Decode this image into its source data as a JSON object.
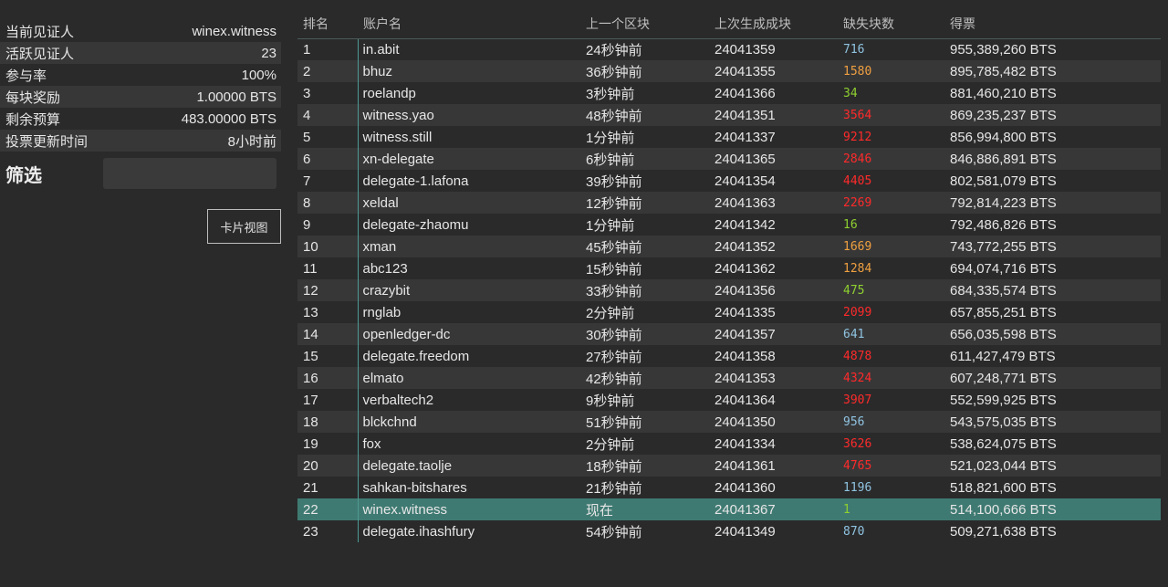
{
  "stats": [
    {
      "label": "当前见证人",
      "value": "winex.witness"
    },
    {
      "label": "活跃见证人",
      "value": "23"
    },
    {
      "label": "参与率",
      "value": "100%"
    },
    {
      "label": "每块奖励",
      "value": "1.00000 BTS"
    },
    {
      "label": "剩余预算",
      "value": "483.00000 BTS"
    },
    {
      "label": "投票更新时间",
      "value": "8小时前"
    }
  ],
  "filter": {
    "label": "筛选",
    "placeholder": ""
  },
  "card_view_button": "卡片视图",
  "table": {
    "headers": {
      "rank": "排名",
      "account": "账户名",
      "last_block": "上一个区块",
      "last_confirmed": "上次生成成块",
      "missed": "缺失块数",
      "votes": "得票"
    },
    "colors": {
      "blue": "#8fc3e0",
      "orange": "#f0a040",
      "green": "#8fd12f",
      "red": "#ff2a2a"
    },
    "rows": [
      {
        "rank": "1",
        "account": "in.abit",
        "last_block": "24秒钟前",
        "last_confirmed": "24041359",
        "missed": "716",
        "missed_color": "#8fc3e0",
        "votes": "955,389,260 BTS"
      },
      {
        "rank": "2",
        "account": "bhuz",
        "last_block": "36秒钟前",
        "last_confirmed": "24041355",
        "missed": "1580",
        "missed_color": "#f0a040",
        "votes": "895,785,482 BTS"
      },
      {
        "rank": "3",
        "account": "roelandp",
        "last_block": "3秒钟前",
        "last_confirmed": "24041366",
        "missed": "34",
        "missed_color": "#8fd12f",
        "votes": "881,460,210 BTS"
      },
      {
        "rank": "4",
        "account": "witness.yao",
        "last_block": "48秒钟前",
        "last_confirmed": "24041351",
        "missed": "3564",
        "missed_color": "#ff2a2a",
        "votes": "869,235,237 BTS"
      },
      {
        "rank": "5",
        "account": "witness.still",
        "last_block": "1分钟前",
        "last_confirmed": "24041337",
        "missed": "9212",
        "missed_color": "#ff2a2a",
        "votes": "856,994,800 BTS"
      },
      {
        "rank": "6",
        "account": "xn-delegate",
        "last_block": "6秒钟前",
        "last_confirmed": "24041365",
        "missed": "2846",
        "missed_color": "#ff2a2a",
        "votes": "846,886,891 BTS"
      },
      {
        "rank": "7",
        "account": "delegate-1.lafona",
        "last_block": "39秒钟前",
        "last_confirmed": "24041354",
        "missed": "4405",
        "missed_color": "#ff2a2a",
        "votes": "802,581,079 BTS"
      },
      {
        "rank": "8",
        "account": "xeldal",
        "last_block": "12秒钟前",
        "last_confirmed": "24041363",
        "missed": "2269",
        "missed_color": "#ff2a2a",
        "votes": "792,814,223 BTS"
      },
      {
        "rank": "9",
        "account": "delegate-zhaomu",
        "last_block": "1分钟前",
        "last_confirmed": "24041342",
        "missed": "16",
        "missed_color": "#8fd12f",
        "votes": "792,486,826 BTS"
      },
      {
        "rank": "10",
        "account": "xman",
        "last_block": "45秒钟前",
        "last_confirmed": "24041352",
        "missed": "1669",
        "missed_color": "#f0a040",
        "votes": "743,772,255 BTS"
      },
      {
        "rank": "11",
        "account": "abc123",
        "last_block": "15秒钟前",
        "last_confirmed": "24041362",
        "missed": "1284",
        "missed_color": "#f0a040",
        "votes": "694,074,716 BTS"
      },
      {
        "rank": "12",
        "account": "crazybit",
        "last_block": "33秒钟前",
        "last_confirmed": "24041356",
        "missed": "475",
        "missed_color": "#8fd12f",
        "votes": "684,335,574 BTS"
      },
      {
        "rank": "13",
        "account": "rnglab",
        "last_block": "2分钟前",
        "last_confirmed": "24041335",
        "missed": "2099",
        "missed_color": "#ff2a2a",
        "votes": "657,855,251 BTS"
      },
      {
        "rank": "14",
        "account": "openledger-dc",
        "last_block": "30秒钟前",
        "last_confirmed": "24041357",
        "missed": "641",
        "missed_color": "#8fc3e0",
        "votes": "656,035,598 BTS"
      },
      {
        "rank": "15",
        "account": "delegate.freedom",
        "last_block": "27秒钟前",
        "last_confirmed": "24041358",
        "missed": "4878",
        "missed_color": "#ff2a2a",
        "votes": "611,427,479 BTS"
      },
      {
        "rank": "16",
        "account": "elmato",
        "last_block": "42秒钟前",
        "last_confirmed": "24041353",
        "missed": "4324",
        "missed_color": "#ff2a2a",
        "votes": "607,248,771 BTS"
      },
      {
        "rank": "17",
        "account": "verbaltech2",
        "last_block": "9秒钟前",
        "last_confirmed": "24041364",
        "missed": "3907",
        "missed_color": "#ff2a2a",
        "votes": "552,599,925 BTS"
      },
      {
        "rank": "18",
        "account": "blckchnd",
        "last_block": "51秒钟前",
        "last_confirmed": "24041350",
        "missed": "956",
        "missed_color": "#8fc3e0",
        "votes": "543,575,035 BTS"
      },
      {
        "rank": "19",
        "account": "fox",
        "last_block": "2分钟前",
        "last_confirmed": "24041334",
        "missed": "3626",
        "missed_color": "#ff2a2a",
        "votes": "538,624,075 BTS"
      },
      {
        "rank": "20",
        "account": "delegate.taolje",
        "last_block": "18秒钟前",
        "last_confirmed": "24041361",
        "missed": "4765",
        "missed_color": "#ff2a2a",
        "votes": "521,023,044 BTS"
      },
      {
        "rank": "21",
        "account": "sahkan-bitshares",
        "last_block": "21秒钟前",
        "last_confirmed": "24041360",
        "missed": "1196",
        "missed_color": "#8fc3e0",
        "votes": "518,821,600 BTS"
      },
      {
        "rank": "22",
        "account": "winex.witness",
        "last_block": "现在",
        "last_confirmed": "24041367",
        "missed": "1",
        "missed_color": "#8fd12f",
        "votes": "514,100,666 BTS",
        "active": true
      },
      {
        "rank": "23",
        "account": "delegate.ihashfury",
        "last_block": "54秒钟前",
        "last_confirmed": "24041349",
        "missed": "870",
        "missed_color": "#8fc3e0",
        "votes": "509,271,638 BTS"
      }
    ]
  }
}
